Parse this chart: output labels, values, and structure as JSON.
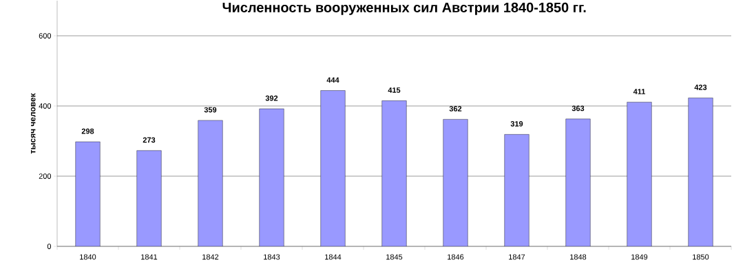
{
  "chart_data": {
    "type": "bar",
    "title": "Численность вооруженных сил Австрии 1840-1850 гг.",
    "ylabel": "тысяч человек",
    "categories": [
      "1840",
      "1841",
      "1842",
      "1843",
      "1844",
      "1845",
      "1846",
      "1847",
      "1848",
      "1849",
      "1850"
    ],
    "values": [
      298,
      273,
      359,
      392,
      444,
      415,
      362,
      319,
      363,
      411,
      423
    ],
    "color": "#9999ff",
    "ylim": [
      0,
      700
    ],
    "yticks": [
      0,
      200,
      400,
      600
    ],
    "grid": "y",
    "data_labels": true
  }
}
